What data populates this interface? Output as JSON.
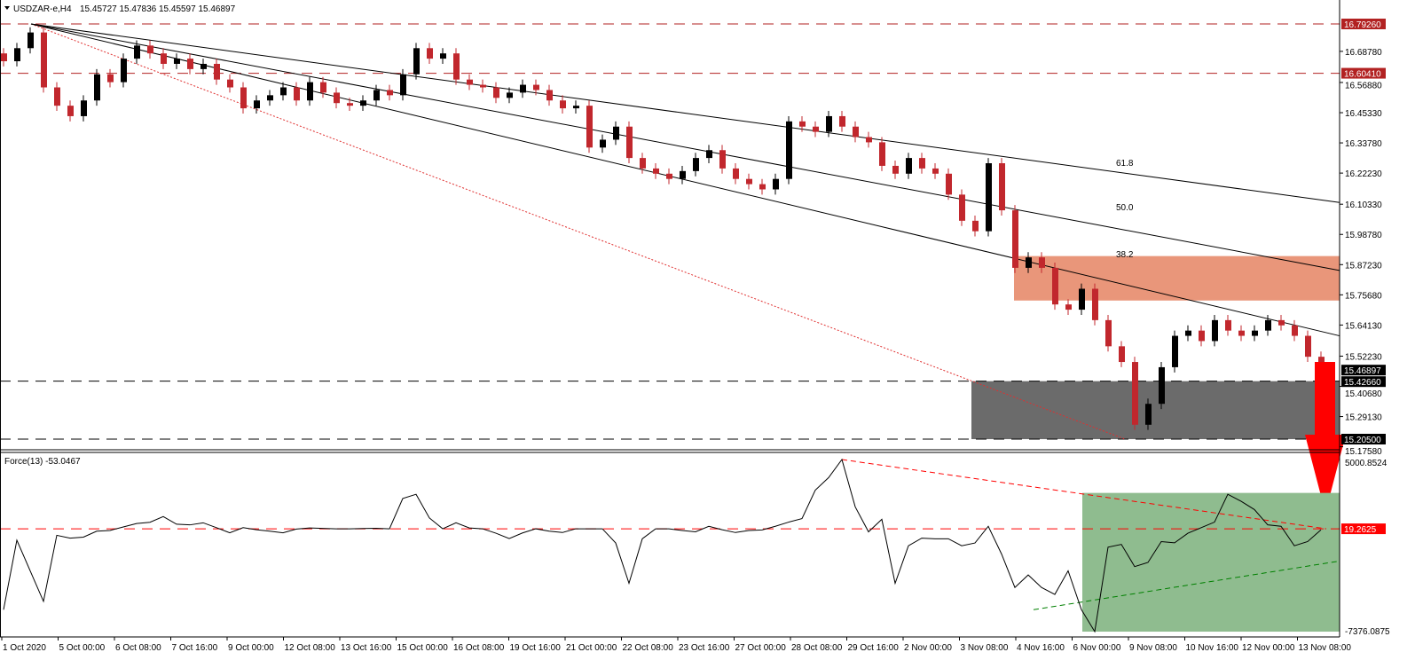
{
  "header": {
    "symbol_label": "USDZAR-e,H4",
    "ohlc": "15.45727 15.47836 15.45597 15.46897"
  },
  "indicator": {
    "label": "Force(13) -53.0467",
    "max_label": "5000.8524",
    "min_label": "-7376.0875",
    "level": 19.2625,
    "level_label": "19.2625"
  },
  "colors": {
    "bull": "#000000",
    "bear": "#c1272d",
    "resistance": "#b22222",
    "zone_resistance": "#e9967a",
    "zone_support": "#6b6b6b",
    "force_zone": "#8fbc8f",
    "arrow": "#ff0000",
    "indicator_level": "#ff0000",
    "uptrend": "#008000"
  },
  "chart_data": [
    {
      "type": "candlestick",
      "title": "USDZAR-e,H4",
      "x_tick_labels": [
        "1 Oct 2020",
        "5 Oct 00:00",
        "6 Oct 08:00",
        "7 Oct 16:00",
        "9 Oct 00:00",
        "12 Oct 08:00",
        "13 Oct 16:00",
        "15 Oct 00:00",
        "16 Oct 08:00",
        "19 Oct 16:00",
        "21 Oct 00:00",
        "22 Oct 08:00",
        "23 Oct 16:00",
        "27 Oct 00:00",
        "28 Oct 08:00",
        "29 Oct 16:00",
        "2 Nov 00:00",
        "3 Nov 08:00",
        "4 Nov 16:00",
        "6 Nov 00:00",
        "9 Nov 08:00",
        "10 Nov 16:00",
        "12 Nov 00:00",
        "13 Nov 08:00"
      ],
      "y_tick_labels": [
        "16.68780",
        "16.56880",
        "16.45330",
        "16.33780",
        "16.22230",
        "16.10330",
        "15.98780",
        "15.87230",
        "15.75680",
        "15.64130",
        "15.52230",
        "15.40680",
        "15.29130",
        "15.17580"
      ],
      "ylim": [
        15.1758,
        16.7926
      ],
      "closes": [
        16.65,
        16.7,
        16.76,
        16.55,
        16.48,
        16.44,
        16.5,
        16.6,
        16.57,
        16.66,
        16.71,
        16.68,
        16.64,
        16.66,
        16.62,
        16.64,
        16.58,
        16.55,
        16.47,
        16.5,
        16.52,
        16.55,
        16.5,
        16.57,
        16.53,
        16.49,
        16.48,
        16.5,
        16.54,
        16.52,
        16.6,
        16.7,
        16.66,
        16.68,
        16.58,
        16.56,
        16.55,
        16.51,
        16.53,
        16.56,
        16.54,
        16.5,
        16.47,
        16.48,
        16.32,
        16.35,
        16.4,
        16.28,
        16.24,
        16.22,
        16.2,
        16.23,
        16.28,
        16.31,
        16.24,
        16.2,
        16.18,
        16.16,
        16.2,
        16.42,
        16.4,
        16.38,
        16.44,
        16.4,
        16.36,
        16.34,
        16.25,
        16.22,
        16.28,
        16.24,
        16.22,
        16.14,
        16.04,
        16.0,
        16.26,
        16.08,
        15.86,
        15.9,
        15.86,
        15.72,
        15.7,
        15.78,
        15.66,
        15.56,
        15.5,
        15.26,
        15.34,
        15.48,
        15.6,
        15.62,
        15.58,
        15.66,
        15.62,
        15.6,
        15.62,
        15.66,
        15.64,
        15.6,
        15.52,
        15.46897
      ],
      "levels": [
        {
          "price": 16.7926,
          "label": "16.79260",
          "style": "resistance"
        },
        {
          "price": 16.6041,
          "label": "16.60410",
          "style": "resistance"
        },
        {
          "price": 15.4266,
          "label": "15.42660",
          "style": "support"
        },
        {
          "price": 15.205,
          "label": "15.20500",
          "style": "support"
        }
      ],
      "current_price_label": "15.46897",
      "zones": [
        {
          "name": "resistance-zone",
          "from": 15.735,
          "to": 15.905
        },
        {
          "name": "support-zone",
          "from": 15.205,
          "to": 15.4266
        }
      ],
      "fib_fan_labels": [
        "61.8",
        "50.0",
        "38.2"
      ]
    },
    {
      "type": "line",
      "title": "Force(13)",
      "ylim": [
        -7376.0875,
        5000.8524
      ],
      "values": [
        -5800,
        -800,
        -3000,
        -5200,
        -450,
        -650,
        -580,
        -150,
        -100,
        150,
        400,
        490,
        900,
        350,
        300,
        450,
        100,
        -270,
        100,
        -50,
        -150,
        -270,
        0,
        80,
        50,
        20,
        20,
        40,
        60,
        20,
        2200,
        2500,
        800,
        20,
        450,
        80,
        20,
        -300,
        -680,
        -280,
        20,
        -150,
        -250,
        20,
        20,
        20,
        -1000,
        -3900,
        -700,
        20,
        20,
        -100,
        -200,
        200,
        -50,
        -250,
        -100,
        -60,
        200,
        500,
        750,
        2800,
        3700,
        5000,
        1600,
        -200,
        700,
        -3900,
        -1200,
        -650,
        -700,
        -700,
        -1200,
        -1000,
        200,
        -1800,
        -4200,
        -3300,
        -4200,
        -4700,
        -3000,
        -5800,
        -7376,
        -1300,
        -1100,
        -2700,
        -2400,
        -900,
        -990,
        -300,
        100,
        500,
        2500,
        2000,
        1400,
        300,
        200,
        -1200,
        -900,
        -53.0467
      ]
    }
  ]
}
